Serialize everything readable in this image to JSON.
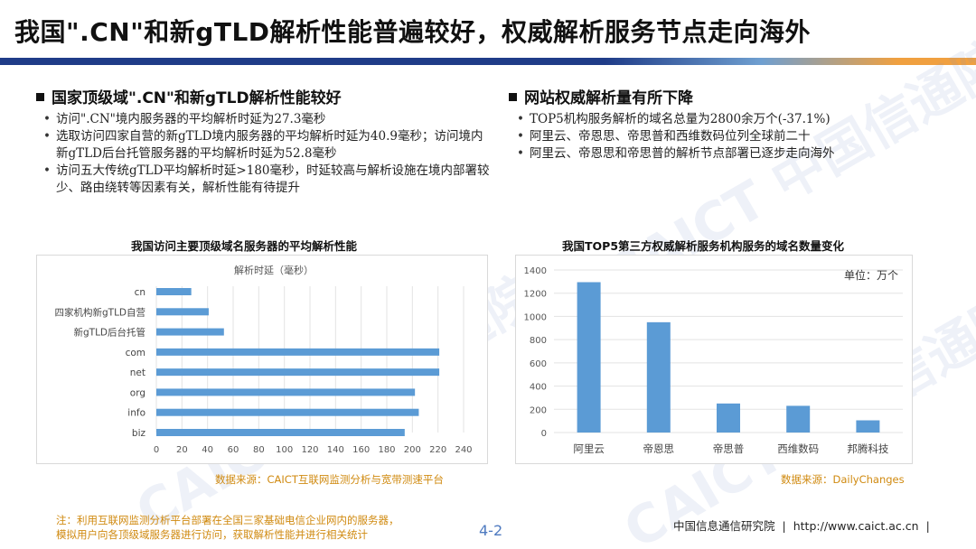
{
  "slide": {
    "title": "我国\".CN\"和新gTLD解析性能普遍较好，权威解析服务节点走向海外",
    "page_number": "4-2",
    "footnote_line1": "注：利用互联网监测分析平台部署在全国三家基础电信企业网内的服务器，",
    "footnote_line2": "模拟用户向各顶级域服务器进行访问，获取解析性能并进行相关统计",
    "org_name": "中国信息通信研究院",
    "org_sep": "|",
    "org_url": "http://www.caict.ac.cn",
    "org_sep2": "|",
    "watermark": "CAICT 中国信通院"
  },
  "left": {
    "heading": "国家顶级域\".CN\"和新gTLD解析性能较好",
    "bullets": [
      "访问\".CN\"境内服务器的平均解析时延为27.3毫秒",
      "选取访问四家自营的新gTLD境内服务器的平均解析时延为40.9毫秒；访问境内新gTLD后台托管服务器的平均解析时延为52.8毫秒",
      "访问五大传统gTLD平均解析时延>180毫秒，时延较高与解析设施在境内部署较少、路由绕转等因素有关，解析性能有待提升"
    ]
  },
  "right": {
    "heading": "网站权威解析量有所下降",
    "bullets": [
      "TOP5机构服务解析的域名总量为2800余万个(-37.1%)",
      "阿里云、帝恩思、帝思普和西维数码位列全球前二十",
      "阿里云、帝恩思和帝思普的解析节点部署已逐步走向海外"
    ]
  },
  "chart_data": [
    {
      "type": "bar",
      "orientation": "horizontal",
      "title": "我国访问主要顶级域名服务器的平均解析性能",
      "subtitle": "解析时延（毫秒）",
      "source": "数据来源：CAICT互联网监测分析与宽带测速平台",
      "categories": [
        "cn",
        "四家机构新gTLD自营",
        "新gTLD后台托管",
        "com",
        "net",
        "org",
        "info",
        "biz"
      ],
      "values": [
        27.3,
        40.9,
        52.8,
        221,
        221,
        202,
        205,
        194
      ],
      "xlim": [
        0,
        240
      ],
      "xticks": [
        0,
        20,
        40,
        60,
        80,
        100,
        120,
        140,
        160,
        180,
        200,
        220,
        240
      ],
      "grid": true,
      "bar_color": "#5b9bd5"
    },
    {
      "type": "bar",
      "orientation": "vertical",
      "title": "我国TOP5第三方权威解析服务机构服务的域名数量变化",
      "unit_label": "单位：万个",
      "source": "数据来源：DailyChanges",
      "categories": [
        "阿里云",
        "帝恩思",
        "帝思普",
        "西维数码",
        "邦腾科技"
      ],
      "values": [
        1295,
        950,
        250,
        230,
        105
      ],
      "ylim": [
        0,
        1400
      ],
      "yticks": [
        0,
        200,
        400,
        600,
        800,
        1000,
        1200,
        1400
      ],
      "grid": true,
      "bar_color": "#5b9bd5"
    }
  ]
}
